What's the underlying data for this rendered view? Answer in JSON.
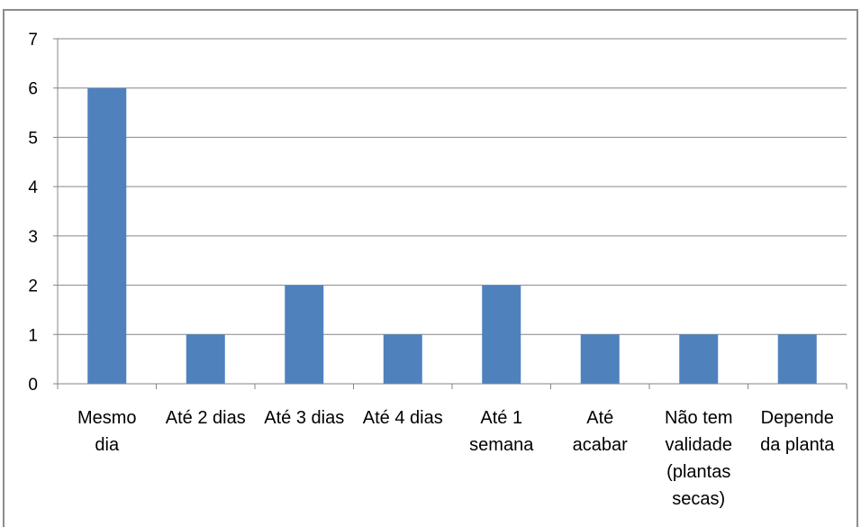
{
  "chart_data": {
    "type": "bar",
    "categories": [
      [
        "Mesmo",
        "dia"
      ],
      [
        "Até 2 dias"
      ],
      [
        "Até 3 dias"
      ],
      [
        "Até 4 dias"
      ],
      [
        "Até 1",
        "semana"
      ],
      [
        "Até",
        "acabar"
      ],
      [
        "Não tem",
        "validade",
        "(plantas",
        "secas)"
      ],
      [
        "Depende",
        "da planta"
      ]
    ],
    "values": [
      6,
      1,
      2,
      1,
      2,
      1,
      1,
      1
    ],
    "ylim": [
      0,
      7
    ],
    "yticks": [
      "0",
      "1",
      "2",
      "3",
      "4",
      "5",
      "6",
      "7"
    ],
    "grid": true,
    "legend": "none",
    "bar_color": "#4f81bd",
    "grid_color": "#868686"
  }
}
